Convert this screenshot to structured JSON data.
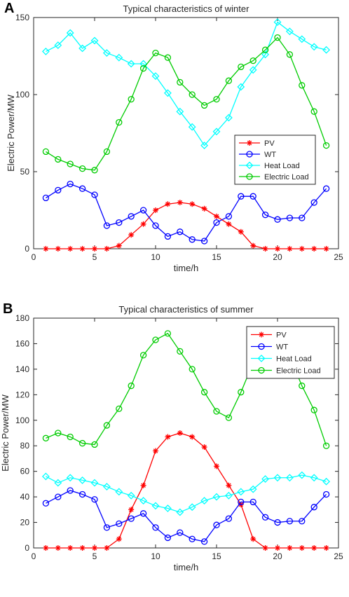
{
  "chart_data": [
    {
      "panel": "A",
      "type": "line",
      "title": "Typical characteristics of winter",
      "xlabel": "time/h",
      "ylabel": "Electric Power/MW",
      "xlim": [
        0,
        25
      ],
      "ylim": [
        0,
        150
      ],
      "xticks": [
        0,
        5,
        10,
        15,
        20,
        25
      ],
      "yticks": [
        0,
        50,
        100,
        150
      ],
      "legend_position": "center-right",
      "x": [
        1,
        2,
        3,
        4,
        5,
        6,
        7,
        8,
        9,
        10,
        11,
        12,
        13,
        14,
        15,
        16,
        17,
        18,
        19,
        20,
        21,
        22,
        23,
        24
      ],
      "series": [
        {
          "name": "PV",
          "color": "#ff0000",
          "marker": "star",
          "values": [
            0,
            0,
            0,
            0,
            0,
            0,
            2,
            9,
            16,
            25,
            29,
            30,
            29,
            26,
            21,
            16,
            11,
            2,
            0,
            0,
            0,
            0,
            0,
            0
          ]
        },
        {
          "name": "WT",
          "color": "#0000ff",
          "marker": "circle",
          "values": [
            33,
            38,
            42,
            39,
            35,
            15,
            17,
            21,
            25,
            15,
            8,
            11,
            6,
            5,
            17,
            21,
            34,
            34,
            22,
            19,
            20,
            20,
            30,
            39
          ]
        },
        {
          "name": "Heat Load",
          "color": "#00ffff",
          "marker": "diamond",
          "values": [
            128,
            132,
            140,
            130,
            135,
            127,
            124,
            120,
            120,
            112,
            101,
            89,
            79,
            67,
            76,
            85,
            105,
            116,
            126,
            147,
            141,
            136,
            131,
            129
          ]
        },
        {
          "name": "Electric Load",
          "color": "#00cc00",
          "marker": "circle",
          "values": [
            63,
            58,
            55,
            52,
            51,
            63,
            82,
            97,
            117,
            127,
            124,
            108,
            100,
            93,
            97,
            109,
            118,
            122,
            129,
            137,
            126,
            106,
            89,
            67
          ]
        }
      ]
    },
    {
      "panel": "B",
      "type": "line",
      "title": "Typical characteristics of summer",
      "xlabel": "time/h",
      "ylabel": "Electric Power/MW",
      "xlim": [
        0,
        25
      ],
      "ylim": [
        0,
        180
      ],
      "xticks": [
        0,
        5,
        10,
        15,
        20,
        25
      ],
      "yticks": [
        0,
        20,
        40,
        60,
        80,
        100,
        120,
        140,
        160,
        180
      ],
      "legend_position": "top-right",
      "x": [
        1,
        2,
        3,
        4,
        5,
        6,
        7,
        8,
        9,
        10,
        11,
        12,
        13,
        14,
        15,
        16,
        17,
        18,
        19,
        20,
        21,
        22,
        23,
        24
      ],
      "series": [
        {
          "name": "PV",
          "color": "#ff0000",
          "marker": "star",
          "values": [
            0,
            0,
            0,
            0,
            0,
            0,
            7,
            30,
            49,
            76,
            87,
            90,
            87,
            79,
            64,
            49,
            34,
            7,
            0,
            0,
            0,
            0,
            0,
            0
          ]
        },
        {
          "name": "WT",
          "color": "#0000ff",
          "marker": "circle",
          "values": [
            35,
            40,
            45,
            42,
            38,
            16,
            19,
            23,
            27,
            16,
            8,
            12,
            7,
            5,
            18,
            23,
            36,
            36,
            24,
            20,
            21,
            21,
            32,
            42
          ]
        },
        {
          "name": "Heat Load",
          "color": "#00ffff",
          "marker": "diamond",
          "values": [
            56,
            51,
            55,
            53,
            51,
            48,
            44,
            41,
            37,
            33,
            31,
            28,
            32,
            37,
            40,
            41,
            44,
            46,
            54,
            55,
            55,
            57,
            55,
            52
          ]
        },
        {
          "name": "Electric Load",
          "color": "#00cc00",
          "marker": "circle",
          "values": [
            86,
            90,
            87,
            82,
            81,
            96,
            109,
            127,
            151,
            163,
            168,
            154,
            140,
            122,
            107,
            102,
            122,
            145,
            155,
            160,
            150,
            127,
            108,
            80
          ]
        }
      ]
    }
  ]
}
